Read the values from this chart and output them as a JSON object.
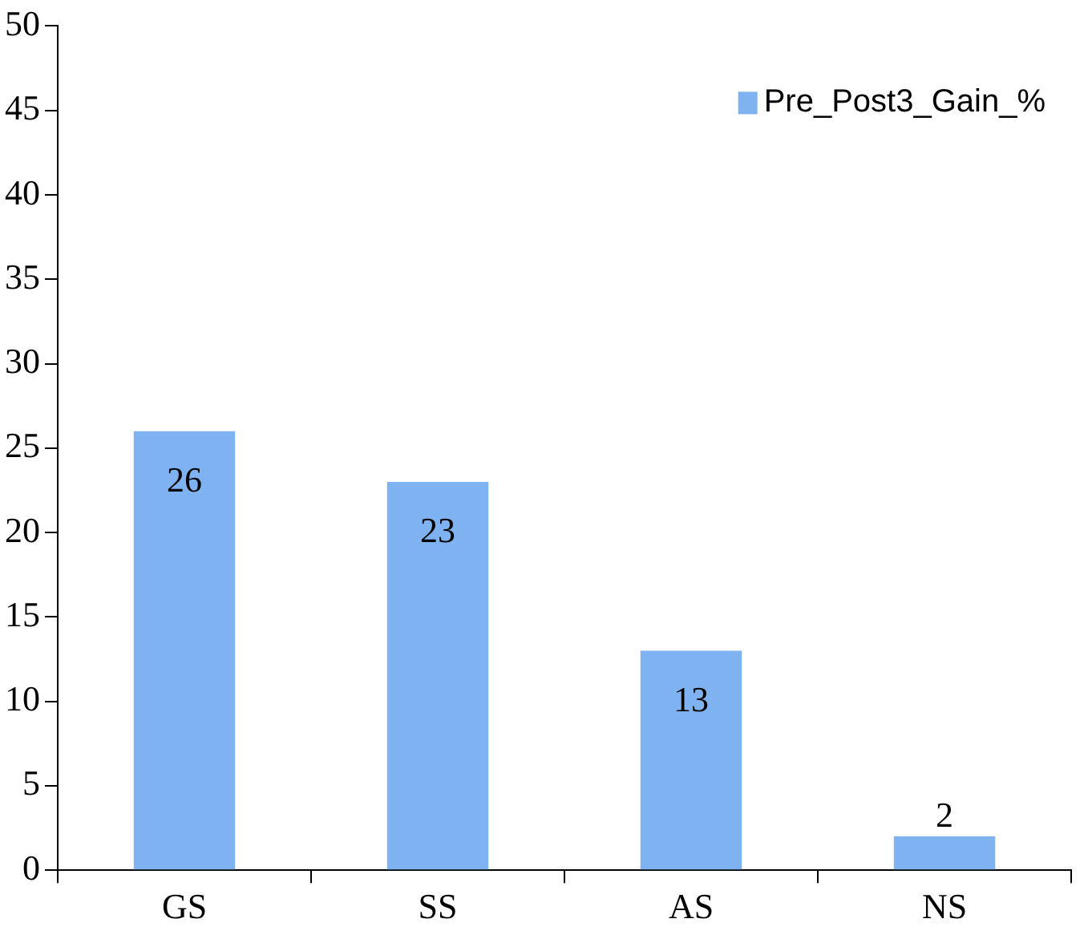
{
  "chart_data": {
    "type": "bar",
    "categories": [
      "GS",
      "SS",
      "AS",
      "NS"
    ],
    "series": [
      {
        "name": "Pre_Post3_Gain_%",
        "color": "#7fb2f0",
        "values": [
          26,
          23,
          13,
          2
        ]
      }
    ],
    "ylim": [
      0,
      50
    ],
    "yticks": [
      0,
      5,
      10,
      15,
      20,
      25,
      30,
      35,
      40,
      45,
      50
    ],
    "grid": false,
    "legend": "top right",
    "data_labels": true
  }
}
